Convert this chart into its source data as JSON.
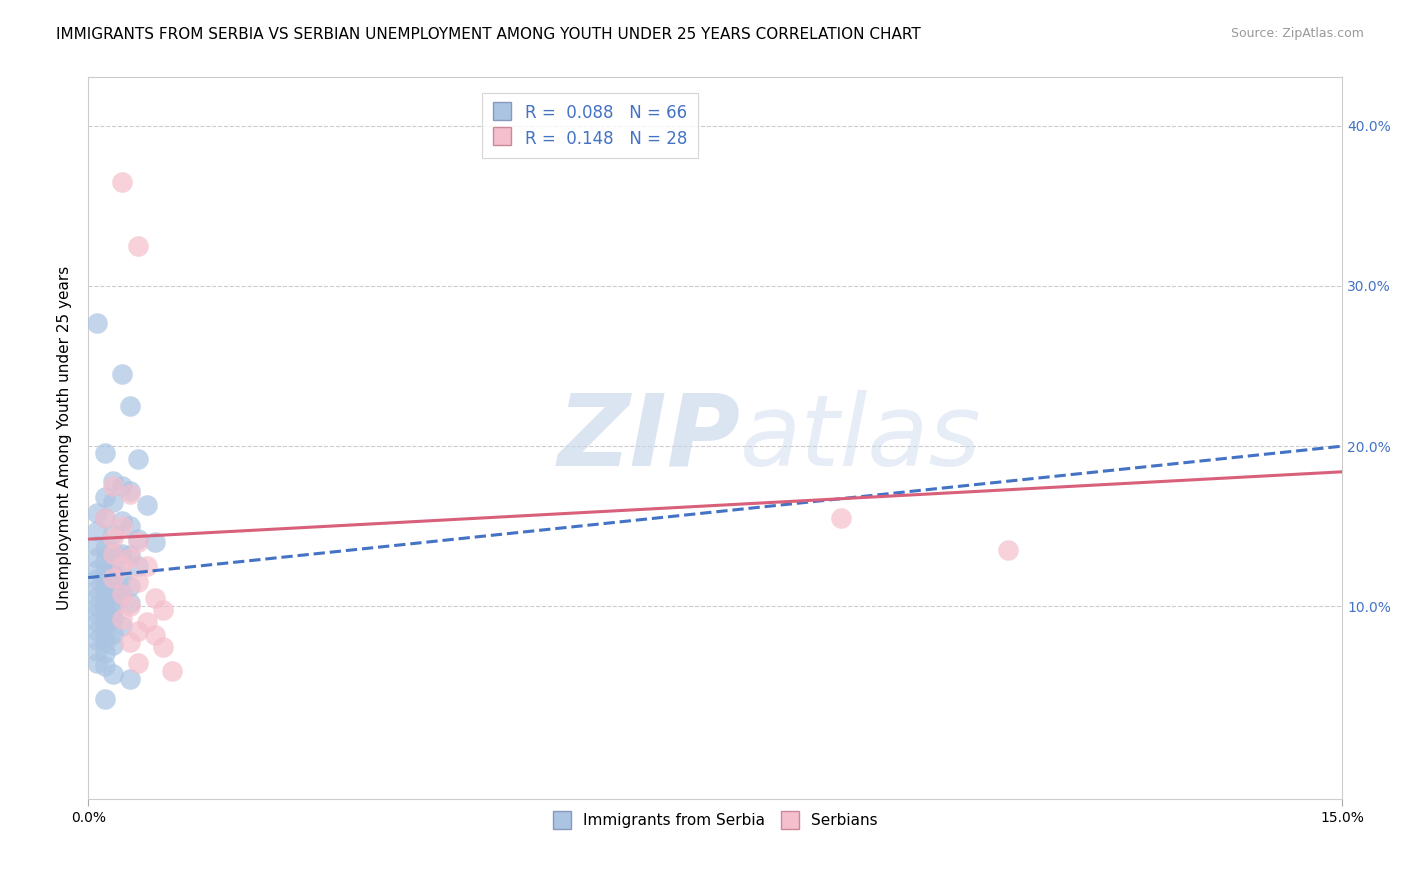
{
  "title": "IMMIGRANTS FROM SERBIA VS SERBIAN UNEMPLOYMENT AMONG YOUTH UNDER 25 YEARS CORRELATION CHART",
  "source": "Source: ZipAtlas.com",
  "ylabel": "Unemployment Among Youth under 25 years",
  "xlim": [
    0,
    0.15
  ],
  "ylim": [
    -0.02,
    0.43
  ],
  "ytick_labels_right": [
    "",
    "10.0%",
    "20.0%",
    "30.0%",
    "40.0%"
  ],
  "yticks_right": [
    0.0,
    0.1,
    0.2,
    0.3,
    0.4
  ],
  "legend_blue_r": "0.088",
  "legend_blue_n": "66",
  "legend_pink_r": "0.148",
  "legend_pink_n": "28",
  "legend_label_blue": "Immigrants from Serbia",
  "legend_label_pink": "Serbians",
  "blue_scatter": [
    [
      0.001,
      0.277
    ],
    [
      0.004,
      0.245
    ],
    [
      0.005,
      0.225
    ],
    [
      0.002,
      0.196
    ],
    [
      0.006,
      0.192
    ],
    [
      0.003,
      0.178
    ],
    [
      0.004,
      0.175
    ],
    [
      0.005,
      0.172
    ],
    [
      0.002,
      0.168
    ],
    [
      0.003,
      0.165
    ],
    [
      0.007,
      0.163
    ],
    [
      0.001,
      0.158
    ],
    [
      0.002,
      0.155
    ],
    [
      0.004,
      0.153
    ],
    [
      0.005,
      0.15
    ],
    [
      0.001,
      0.147
    ],
    [
      0.003,
      0.145
    ],
    [
      0.006,
      0.142
    ],
    [
      0.008,
      0.14
    ],
    [
      0.001,
      0.138
    ],
    [
      0.002,
      0.136
    ],
    [
      0.003,
      0.134
    ],
    [
      0.004,
      0.133
    ],
    [
      0.005,
      0.132
    ],
    [
      0.001,
      0.13
    ],
    [
      0.002,
      0.128
    ],
    [
      0.003,
      0.127
    ],
    [
      0.006,
      0.125
    ],
    [
      0.001,
      0.123
    ],
    [
      0.002,
      0.121
    ],
    [
      0.003,
      0.12
    ],
    [
      0.004,
      0.119
    ],
    [
      0.001,
      0.117
    ],
    [
      0.002,
      0.115
    ],
    [
      0.003,
      0.114
    ],
    [
      0.005,
      0.113
    ],
    [
      0.001,
      0.111
    ],
    [
      0.002,
      0.11
    ],
    [
      0.003,
      0.109
    ],
    [
      0.004,
      0.108
    ],
    [
      0.001,
      0.106
    ],
    [
      0.002,
      0.104
    ],
    [
      0.003,
      0.103
    ],
    [
      0.005,
      0.102
    ],
    [
      0.001,
      0.1
    ],
    [
      0.002,
      0.099
    ],
    [
      0.003,
      0.098
    ],
    [
      0.001,
      0.095
    ],
    [
      0.002,
      0.094
    ],
    [
      0.003,
      0.093
    ],
    [
      0.001,
      0.09
    ],
    [
      0.002,
      0.089
    ],
    [
      0.004,
      0.088
    ],
    [
      0.001,
      0.085
    ],
    [
      0.002,
      0.084
    ],
    [
      0.003,
      0.083
    ],
    [
      0.001,
      0.079
    ],
    [
      0.002,
      0.078
    ],
    [
      0.003,
      0.076
    ],
    [
      0.001,
      0.072
    ],
    [
      0.002,
      0.071
    ],
    [
      0.001,
      0.065
    ],
    [
      0.002,
      0.063
    ],
    [
      0.003,
      0.058
    ],
    [
      0.005,
      0.055
    ],
    [
      0.002,
      0.042
    ]
  ],
  "pink_scatter": [
    [
      0.004,
      0.365
    ],
    [
      0.006,
      0.325
    ],
    [
      0.003,
      0.175
    ],
    [
      0.005,
      0.17
    ],
    [
      0.002,
      0.155
    ],
    [
      0.004,
      0.15
    ],
    [
      0.003,
      0.143
    ],
    [
      0.006,
      0.14
    ],
    [
      0.003,
      0.133
    ],
    [
      0.005,
      0.13
    ],
    [
      0.004,
      0.125
    ],
    [
      0.007,
      0.125
    ],
    [
      0.003,
      0.118
    ],
    [
      0.006,
      0.115
    ],
    [
      0.004,
      0.108
    ],
    [
      0.008,
      0.105
    ],
    [
      0.005,
      0.1
    ],
    [
      0.009,
      0.098
    ],
    [
      0.004,
      0.092
    ],
    [
      0.007,
      0.09
    ],
    [
      0.006,
      0.085
    ],
    [
      0.008,
      0.082
    ],
    [
      0.005,
      0.078
    ],
    [
      0.009,
      0.075
    ],
    [
      0.006,
      0.065
    ],
    [
      0.01,
      0.06
    ],
    [
      0.09,
      0.155
    ],
    [
      0.11,
      0.135
    ]
  ],
  "blue_line_x": [
    0.0,
    0.15
  ],
  "blue_line_y": [
    0.118,
    0.2
  ],
  "pink_line_x": [
    0.0,
    0.15
  ],
  "pink_line_y": [
    0.142,
    0.184
  ],
  "watermark_zip": "ZIP",
  "watermark_atlas": "atlas",
  "blue_color": "#aac4e2",
  "pink_color": "#f5bfcd",
  "blue_line_color": "#4472c4",
  "pink_line_color": "#d9607a",
  "title_fontsize": 11,
  "axis_label_fontsize": 11,
  "tick_fontsize": 10
}
